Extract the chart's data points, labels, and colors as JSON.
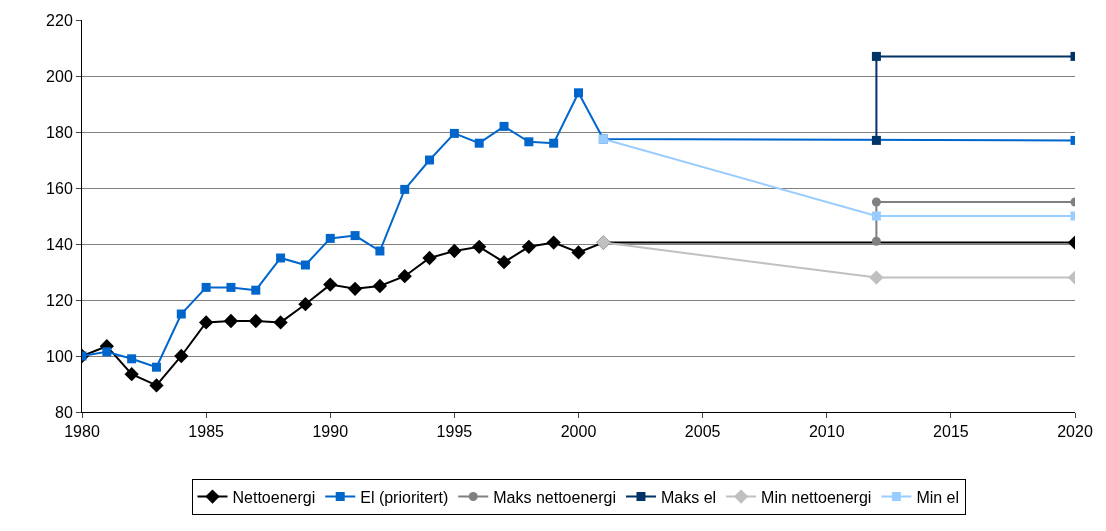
{
  "chart_data": {
    "type": "line",
    "xlim": [
      1980,
      2020
    ],
    "xticks": [
      1980,
      1985,
      1990,
      1995,
      2000,
      2005,
      2010,
      2015,
      2020
    ],
    "ylim": [
      80,
      220
    ],
    "yticks": [
      80,
      100,
      120,
      140,
      160,
      180,
      200,
      220
    ],
    "grid": "y",
    "legend": "bottom",
    "line_style": "solid",
    "series": [
      {
        "name": "Nettoenergi",
        "color": "#000000",
        "marker": "diamond",
        "x": [
          1980,
          1981,
          1982,
          1983,
          1984,
          1985,
          1986,
          1987,
          1988,
          1989,
          1990,
          1991,
          1992,
          1993,
          1994,
          1995,
          1996,
          1997,
          1998,
          1999,
          2000,
          2001,
          2020
        ],
        "values": [
          100,
          103.5,
          93.5,
          89.5,
          100,
          112,
          112.5,
          112.5,
          112,
          118.5,
          125.5,
          124,
          125,
          128.5,
          135,
          137.5,
          139,
          133.5,
          139,
          140.5,
          137,
          140.5,
          140.5
        ]
      },
      {
        "name": "El (prioritert)",
        "color": "#0066cc",
        "marker": "square",
        "x": [
          1980,
          1981,
          1982,
          1983,
          1984,
          1985,
          1986,
          1987,
          1988,
          1989,
          1990,
          1991,
          1992,
          1993,
          1994,
          1995,
          1996,
          1997,
          1998,
          1999,
          2000,
          2001,
          2020
        ],
        "values": [
          100,
          101.5,
          99,
          96,
          115,
          124.5,
          124.5,
          123.5,
          135,
          132.5,
          142,
          143,
          137.5,
          159.5,
          170,
          179.5,
          176,
          182,
          176.5,
          176,
          194,
          177.5,
          177
        ]
      },
      {
        "name": "Maks nettoenergi",
        "color": "#808080",
        "marker": "circle",
        "x": [
          2012,
          2012,
          2020
        ],
        "values": [
          141,
          155,
          155
        ]
      },
      {
        "name": "Maks el",
        "color": "#003366",
        "marker": "square",
        "x": [
          2012,
          2012,
          2020
        ],
        "values": [
          177,
          207,
          207
        ]
      },
      {
        "name": "Min nettoenergi",
        "color": "#c0c0c0",
        "marker": "diamond",
        "x": [
          2001,
          2012,
          2020
        ],
        "values": [
          140.5,
          128,
          128
        ]
      },
      {
        "name": "Min el",
        "color": "#99ccff",
        "marker": "square",
        "x": [
          2001,
          2012,
          2020
        ],
        "values": [
          177.5,
          150,
          150
        ]
      }
    ]
  }
}
